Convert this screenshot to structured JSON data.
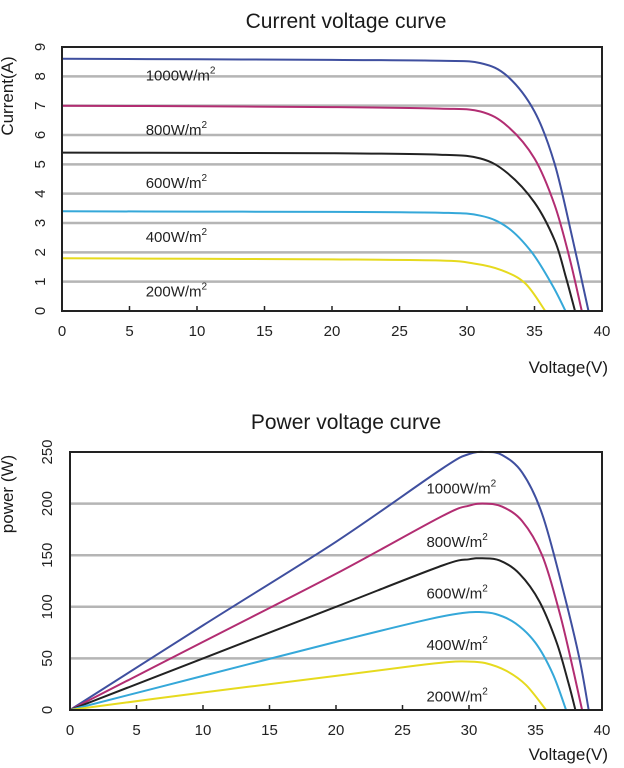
{
  "chart_data": [
    {
      "type": "line",
      "title": "Current voltage curve",
      "xlabel": "Voltage(V)",
      "ylabel": "Current(A)",
      "xlim": [
        0,
        40
      ],
      "ylim": [
        0,
        9
      ],
      "x_ticks": [
        0,
        5,
        10,
        15,
        20,
        25,
        30,
        35,
        40
      ],
      "y_ticks": [
        0,
        1,
        2,
        3,
        4,
        5,
        6,
        7,
        8,
        9
      ],
      "grid": "horizontal",
      "series": [
        {
          "name": "1000W/m2",
          "label_base": "1000W/m",
          "label_sup": "2",
          "color": "#3f4f9f",
          "isc": 8.6,
          "voc": 39.0,
          "knee": 31.5,
          "label_x": 6.2,
          "label_y": 7.85,
          "points": [
            [
              0,
              8.6
            ],
            [
              10,
              8.58
            ],
            [
              20,
              8.56
            ],
            [
              28,
              8.53
            ],
            [
              31,
              8.45
            ],
            [
              33,
              8.0
            ],
            [
              35,
              6.8
            ],
            [
              36.5,
              5.0
            ],
            [
              37.8,
              2.5
            ],
            [
              39.0,
              0
            ]
          ]
        },
        {
          "name": "800W/m2",
          "label_base": "800W/m",
          "label_sup": "2",
          "color": "#b22d72",
          "isc": 7.0,
          "voc": 38.5,
          "knee": 31.0,
          "label_x": 6.2,
          "label_y": 6.0,
          "points": [
            [
              0,
              7.0
            ],
            [
              10,
              6.98
            ],
            [
              20,
              6.95
            ],
            [
              28,
              6.9
            ],
            [
              31,
              6.8
            ],
            [
              33,
              6.3
            ],
            [
              35,
              5.2
            ],
            [
              36.5,
              3.6
            ],
            [
              37.6,
              1.8
            ],
            [
              38.5,
              0
            ]
          ]
        },
        {
          "name": "600W/m2",
          "label_base": "600W/m",
          "label_sup": "2",
          "color": "#222222",
          "isc": 5.4,
          "voc": 38.0,
          "knee": 30.5,
          "label_x": 6.2,
          "label_y": 4.2,
          "points": [
            [
              0,
              5.4
            ],
            [
              10,
              5.39
            ],
            [
              20,
              5.38
            ],
            [
              28,
              5.33
            ],
            [
              31,
              5.2
            ],
            [
              33,
              4.7
            ],
            [
              35,
              3.7
            ],
            [
              36.5,
              2.4
            ],
            [
              37.3,
              1.2
            ],
            [
              38.0,
              0
            ]
          ]
        },
        {
          "name": "400W/m2",
          "label_base": "400W/m",
          "label_sup": "2",
          "color": "#35a8d9",
          "isc": 3.4,
          "voc": 37.3,
          "knee": 30.0,
          "label_x": 6.2,
          "label_y": 2.35,
          "points": [
            [
              0,
              3.4
            ],
            [
              10,
              3.39
            ],
            [
              20,
              3.38
            ],
            [
              28,
              3.35
            ],
            [
              31,
              3.25
            ],
            [
              33,
              2.85
            ],
            [
              34.8,
              2.0
            ],
            [
              36.3,
              0.9
            ],
            [
              37.3,
              0
            ]
          ]
        },
        {
          "name": "200W/m2",
          "label_base": "200W/m",
          "label_sup": "2",
          "color": "#e6da1e",
          "isc": 1.8,
          "voc": 35.8,
          "knee": 28.5,
          "label_x": 6.2,
          "label_y": 0.5,
          "points": [
            [
              0,
              1.8
            ],
            [
              10,
              1.78
            ],
            [
              20,
              1.76
            ],
            [
              28,
              1.72
            ],
            [
              30.5,
              1.62
            ],
            [
              32.5,
              1.4
            ],
            [
              34.3,
              0.95
            ],
            [
              35.8,
              0
            ]
          ]
        }
      ]
    },
    {
      "type": "line",
      "title": "Power voltage curve",
      "xlabel": "Voltage(V)",
      "ylabel": "power (W)",
      "xlim": [
        0,
        40
      ],
      "ylim": [
        0,
        250
      ],
      "x_ticks": [
        0,
        5,
        10,
        15,
        20,
        25,
        30,
        35,
        40
      ],
      "y_ticks": [
        0,
        50,
        100,
        150,
        200,
        250
      ],
      "grid": "horizontal",
      "series": [
        {
          "name": "1000W/m2",
          "label_base": "1000W/m",
          "label_sup": "2",
          "color": "#3f4f9f",
          "label_x": 26.8,
          "label_y": 210,
          "points": [
            [
              0,
              0
            ],
            [
              10,
              82
            ],
            [
              20,
              163
            ],
            [
              28,
              234
            ],
            [
              30,
              248
            ],
            [
              31.3,
              250
            ],
            [
              32.5,
              247
            ],
            [
              34,
              230
            ],
            [
              35.5,
              190
            ],
            [
              37,
              120
            ],
            [
              38.3,
              50
            ],
            [
              39.0,
              0
            ]
          ]
        },
        {
          "name": "800W/m2",
          "label_base": "800W/m",
          "label_sup": "2",
          "color": "#b22d72",
          "label_x": 26.8,
          "label_y": 158,
          "points": [
            [
              0,
              0
            ],
            [
              10,
              66
            ],
            [
              20,
              132
            ],
            [
              28,
              188
            ],
            [
              30,
              198
            ],
            [
              31.2,
              200
            ],
            [
              32.5,
              197
            ],
            [
              34,
              183
            ],
            [
              35.5,
              150
            ],
            [
              36.8,
              95
            ],
            [
              37.9,
              35
            ],
            [
              38.5,
              0
            ]
          ]
        },
        {
          "name": "600W/m2",
          "label_base": "600W/m",
          "label_sup": "2",
          "color": "#222222",
          "label_x": 26.8,
          "label_y": 108,
          "points": [
            [
              0,
              0
            ],
            [
              10,
              50
            ],
            [
              20,
              100
            ],
            [
              28,
              140
            ],
            [
              30,
              146
            ],
            [
              31,
              147
            ],
            [
              32.3,
              145
            ],
            [
              33.8,
              132
            ],
            [
              35.3,
              105
            ],
            [
              36.6,
              65
            ],
            [
              37.5,
              25
            ],
            [
              38.0,
              0
            ]
          ]
        },
        {
          "name": "400W/m2",
          "label_base": "400W/m",
          "label_sup": "2",
          "color": "#35a8d9",
          "label_x": 26.8,
          "label_y": 58,
          "points": [
            [
              0,
              0
            ],
            [
              10,
              33
            ],
            [
              20,
              66
            ],
            [
              27,
              88
            ],
            [
              29.5,
              94
            ],
            [
              30.7,
              95
            ],
            [
              32,
              93
            ],
            [
              33.5,
              84
            ],
            [
              35,
              65
            ],
            [
              36.3,
              35
            ],
            [
              37.3,
              0
            ]
          ]
        },
        {
          "name": "200W/m2",
          "label_base": "200W/m",
          "label_sup": "2",
          "color": "#e6da1e",
          "label_x": 26.8,
          "label_y": 8,
          "points": [
            [
              0,
              0
            ],
            [
              10,
              17
            ],
            [
              20,
              33
            ],
            [
              26,
              43
            ],
            [
              28.5,
              46.5
            ],
            [
              29.8,
              47
            ],
            [
              31.2,
              45.5
            ],
            [
              32.8,
              38
            ],
            [
              34.3,
              24
            ],
            [
              35.8,
              0
            ]
          ]
        }
      ]
    }
  ]
}
